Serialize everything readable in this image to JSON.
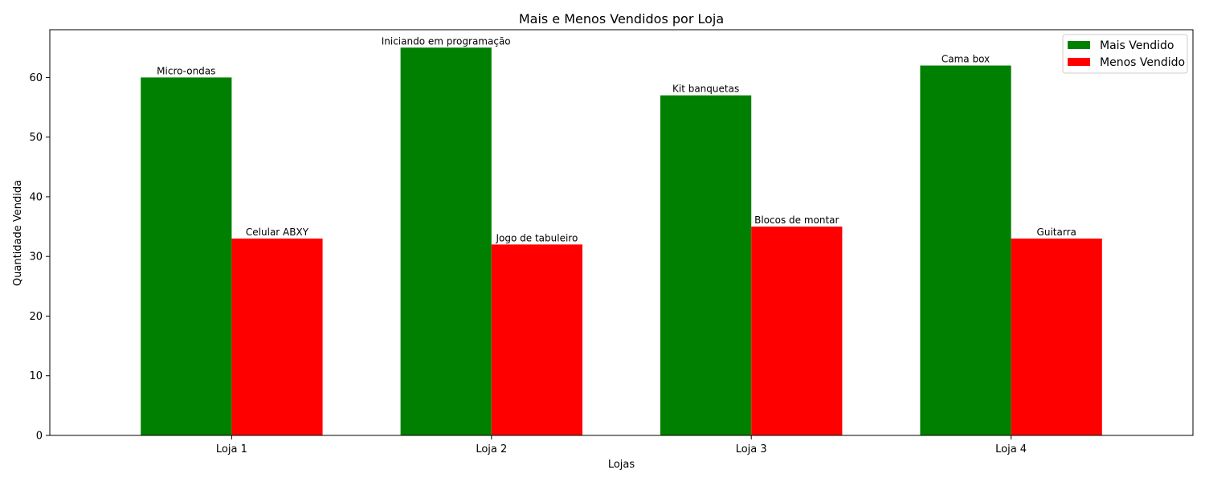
{
  "chart_data": {
    "type": "bar",
    "title": "Mais e Menos Vendidos por Loja",
    "xlabel": "Lojas",
    "ylabel": "Quantidade Vendida",
    "categories": [
      "Loja 1",
      "Loja 2",
      "Loja 3",
      "Loja 4"
    ],
    "ylim": [
      0,
      68
    ],
    "yticks": [
      0,
      10,
      20,
      30,
      40,
      50,
      60
    ],
    "grid": false,
    "legend_position": "top-right",
    "series": [
      {
        "name": "Mais Vendido",
        "color": "#008000",
        "values": [
          60,
          65,
          57,
          62
        ],
        "labels": [
          "Micro-ondas",
          "Iniciando em programação",
          "Kit banquetas",
          "Cama box"
        ]
      },
      {
        "name": "Menos Vendido",
        "color": "#ff0000",
        "values": [
          33,
          32,
          35,
          33
        ],
        "labels": [
          "Celular ABXY",
          "Jogo de tabuleiro",
          "Blocos de montar",
          "Guitarra"
        ]
      }
    ]
  }
}
